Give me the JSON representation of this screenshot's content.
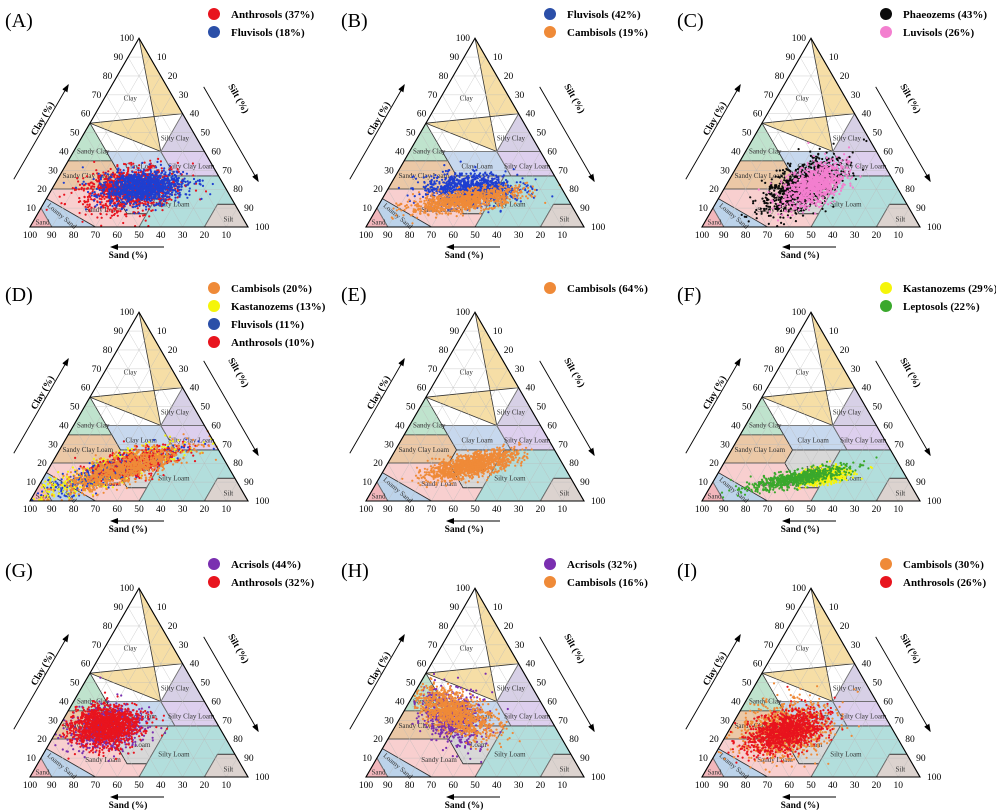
{
  "figure": {
    "chart_data": {
      "type": "scatter",
      "subtype": "soil-texture-ternary",
      "axes": {
        "sand_title": "Sand (%)",
        "clay_title": "Clay (%)",
        "silt_title": "Silt (%)",
        "sand_ticks": [
          "100",
          "90",
          "80",
          "70",
          "60",
          "50",
          "40",
          "30",
          "20",
          "10"
        ],
        "clay_ticks": [
          "10",
          "20",
          "30",
          "40",
          "50",
          "60",
          "70",
          "80",
          "90",
          "100"
        ],
        "silt_ticks": [
          "10",
          "20",
          "30",
          "40",
          "50",
          "60",
          "70",
          "80",
          "90",
          "100"
        ],
        "range": [
          0,
          100
        ]
      },
      "regions": [
        {
          "name": "Clay",
          "color": "#f6dea6",
          "vertices": [
            [
              45,
              55
            ],
            [
              0,
              60
            ],
            [
              0,
              100
            ],
            [
              20,
              40
            ]
          ]
        },
        {
          "name": "Silty Clay",
          "color": "#d7d0e6",
          "vertices": [
            [
              0,
              60
            ],
            [
              0,
              40
            ],
            [
              20,
              40
            ]
          ]
        },
        {
          "name": "Sandy Clay",
          "color": "#bfe3cd",
          "vertices": [
            [
              45,
              55
            ],
            [
              65,
              35
            ],
            [
              45,
              35
            ]
          ]
        },
        {
          "name": "Clay Loam",
          "color": "#c7d8ee",
          "vertices": [
            [
              45,
              27
            ],
            [
              20,
              27
            ],
            [
              20,
              40
            ],
            [
              45,
              40
            ]
          ]
        },
        {
          "name": "Silty Clay Loam",
          "color": "#ddcfee",
          "vertices": [
            [
              20,
              27
            ],
            [
              0,
              27
            ],
            [
              0,
              40
            ],
            [
              20,
              40
            ]
          ]
        },
        {
          "name": "Sandy Clay Loam",
          "color": "#ebc8a6",
          "vertices": [
            [
              45,
              35
            ],
            [
              65,
              35
            ],
            [
              80,
              20
            ],
            [
              52,
              20
            ],
            [
              45,
              27
            ]
          ]
        },
        {
          "name": "Loam",
          "color": "#d8d8d8",
          "vertices": [
            [
              45,
              27
            ],
            [
              52,
              20
            ],
            [
              52,
              7
            ],
            [
              43,
              7
            ],
            [
              23,
              27
            ]
          ]
        },
        {
          "name": "Silty Loam",
          "color": "#b2dedc",
          "vertices": [
            [
              50,
              0
            ],
            [
              20,
              0
            ],
            [
              8,
              12
            ],
            [
              0,
              12
            ],
            [
              0,
              27
            ],
            [
              23,
              27
            ],
            [
              50,
              0
            ]
          ]
        },
        {
          "name": "Silt",
          "color": "#dcd3cf",
          "vertices": [
            [
              20,
              0
            ],
            [
              0,
              0
            ],
            [
              0,
              12
            ],
            [
              8,
              12
            ]
          ]
        },
        {
          "name": "Sandy Loam",
          "color": "#f8cfcf",
          "vertices": [
            [
              52,
              20
            ],
            [
              80,
              20
            ],
            [
              85,
              15
            ],
            [
              70,
              0
            ],
            [
              50,
              0
            ],
            [
              43,
              7
            ],
            [
              52,
              7
            ]
          ]
        },
        {
          "name": "Loamy Sand",
          "color": "#bcd3ea",
          "vertices": [
            [
              85,
              15
            ],
            [
              70,
              0
            ],
            [
              90,
              0
            ],
            [
              90,
              10
            ]
          ]
        },
        {
          "name": "Sand",
          "color": "#f2b7bc",
          "vertices": [
            [
              100,
              0
            ],
            [
              90,
              0
            ],
            [
              90,
              10
            ]
          ]
        }
      ],
      "series_colors": {
        "Anthrosols": "#e8141e",
        "Fluvisols": "#1f3fd0",
        "Cambisols": "#ef8a38",
        "Phaeozems": "#0a0a0a",
        "Luvisols": "#f37fcf",
        "Kastanozems": "#f5f50a",
        "Leptosols": "#3aa82c",
        "Acrisols": "#7a2fb0"
      },
      "panels": [
        {
          "letter": "(A)",
          "legend": [
            {
              "text": "Anthrosols (37%)",
              "color": "#e8141e"
            },
            {
              "text": "Fluvisols (18%)",
              "color": "#2b4fa8"
            }
          ],
          "series": [
            {
              "name": "Anthrosols",
              "color": "#e8141e",
              "clusters": [
                {
                  "center": [
                    44,
                    20
                  ],
                  "spread": [
                    12,
                    5
                  ],
                  "angle": 15,
                  "count": 1100
                }
              ]
            },
            {
              "name": "Fluvisols",
              "color": "#1f3fd0",
              "clusters": [
                {
                  "center": [
                    38,
                    21
                  ],
                  "spread": [
                    10,
                    4
                  ],
                  "angle": 10,
                  "count": 1100
                }
              ]
            }
          ]
        },
        {
          "letter": "(B)",
          "legend": [
            {
              "text": "Fluvisols (42%)",
              "color": "#2b4fa8"
            },
            {
              "text": "Cambisols (19%)",
              "color": "#ef8a38"
            }
          ],
          "series": [
            {
              "name": "Fluvisols",
              "color": "#1f3fd0",
              "clusters": [
                {
                  "center": [
                    42,
                    20
                  ],
                  "spread": [
                    11,
                    4
                  ],
                  "angle": 5,
                  "count": 1000
                }
              ]
            },
            {
              "name": "Cambisols",
              "color": "#ef8a38",
              "clusters": [
                {
                  "center": [
                    48,
                    14
                  ],
                  "spread": [
                    14,
                    2.5
                  ],
                  "angle": 10,
                  "count": 1000
                }
              ]
            }
          ]
        },
        {
          "letter": "(C)",
          "legend": [
            {
              "text": "Phaeozems (43%)",
              "color": "#0a0a0a"
            },
            {
              "text": "Luvisols (26%)",
              "color": "#f37fcf"
            }
          ],
          "series": [
            {
              "name": "Phaeozems",
              "color": "#0a0a0a",
              "clusters": [
                {
                  "center": [
                    42,
                    22
                  ],
                  "spread": [
                    13,
                    4
                  ],
                  "angle": 30,
                  "count": 1000
                }
              ]
            },
            {
              "name": "Luvisols",
              "color": "#f37fcf",
              "clusters": [
                {
                  "center": [
                    38,
                    22
                  ],
                  "spread": [
                    10,
                    3.5
                  ],
                  "angle": 30,
                  "count": 1000
                }
              ]
            }
          ]
        },
        {
          "letter": "(D)",
          "legend": [
            {
              "text": "Cambisols (20%)",
              "color": "#ef8a38"
            },
            {
              "text": "Kastanozems (13%)",
              "color": "#f5f50a"
            },
            {
              "text": "Fluvisols (11%)",
              "color": "#2b4fa8"
            },
            {
              "text": "Anthrosols (10%)",
              "color": "#e8141e"
            }
          ],
          "series": [
            {
              "name": "Kastanozems",
              "color": "#f5f50a",
              "clusters": [
                {
                  "center": [
                    55,
                    16
                  ],
                  "spread": [
                    20,
                    3
                  ],
                  "angle": 18,
                  "count": 600
                }
              ]
            },
            {
              "name": "Fluvisols",
              "color": "#1f3fd0",
              "clusters": [
                {
                  "center": [
                    52,
                    17
                  ],
                  "spread": [
                    18,
                    2.5
                  ],
                  "angle": 18,
                  "count": 500
                }
              ]
            },
            {
              "name": "Anthrosols",
              "color": "#e8141e",
              "clusters": [
                {
                  "center": [
                    42,
                    20
                  ],
                  "spread": [
                    12,
                    3
                  ],
                  "angle": 18,
                  "count": 500
                }
              ]
            },
            {
              "name": "Cambisols",
              "color": "#ef8a38",
              "clusters": [
                {
                  "center": [
                    48,
                    17
                  ],
                  "spread": [
                    17,
                    3
                  ],
                  "angle": 18,
                  "count": 900
                }
              ]
            }
          ]
        },
        {
          "letter": "(E)",
          "legend": [
            {
              "text": "Cambisols (64%)",
              "color": "#ef8a38"
            }
          ],
          "series": [
            {
              "name": "Cambisols",
              "color": "#ef8a38",
              "clusters": [
                {
                  "center": [
                    42,
                    19
                  ],
                  "spread": [
                    12,
                    2.5
                  ],
                  "angle": 15,
                  "count": 1200
                }
              ]
            }
          ]
        },
        {
          "letter": "(F)",
          "legend": [
            {
              "text": "Kastanozems (29%)",
              "color": "#f5f50a"
            },
            {
              "text": "Leptosols (22%)",
              "color": "#3aa82c"
            }
          ],
          "series": [
            {
              "name": "Kastanozems",
              "color": "#f5f50a",
              "clusters": [
                {
                  "center": [
                    38,
                    13
                  ],
                  "spread": [
                    7,
                    2
                  ],
                  "angle": 10,
                  "count": 500
                }
              ]
            },
            {
              "name": "Leptosols",
              "color": "#3aa82c",
              "clusters": [
                {
                  "center": [
                    50,
                    12
                  ],
                  "spread": [
                    13,
                    1.8
                  ],
                  "angle": 12,
                  "count": 700
                }
              ]
            }
          ]
        },
        {
          "letter": "(G)",
          "legend": [
            {
              "text": "Acrisols (44%)",
              "color": "#7a2fb0"
            },
            {
              "text": "Anthrosols (32%)",
              "color": "#e8141e"
            }
          ],
          "series": [
            {
              "name": "Acrisols",
              "color": "#7a2fb0",
              "clusters": [
                {
                  "center": [
                    52,
                    26
                  ],
                  "spread": [
                    10,
                    5
                  ],
                  "angle": 20,
                  "count": 700
                }
              ]
            },
            {
              "name": "Anthrosols",
              "color": "#e8141e",
              "clusters": [
                {
                  "center": [
                    52,
                    27
                  ],
                  "spread": [
                    9,
                    5
                  ],
                  "angle": 20,
                  "count": 1300
                }
              ]
            }
          ]
        },
        {
          "letter": "(H)",
          "legend": [
            {
              "text": "Acrisols (32%)",
              "color": "#7a2fb0"
            },
            {
              "text": "Cambisols (16%)",
              "color": "#ef8a38"
            }
          ],
          "series": [
            {
              "name": "Acrisols",
              "color": "#7a2fb0",
              "clusters": [
                {
                  "center": [
                    44,
                    32
                  ],
                  "spread": [
                    8,
                    6
                  ],
                  "angle": 50,
                  "count": 700
                }
              ]
            },
            {
              "name": "Cambisols",
              "color": "#ef8a38",
              "clusters": [
                {
                  "center": [
                    42,
                    34
                  ],
                  "spread": [
                    6,
                    8
                  ],
                  "angle": 60,
                  "count": 1000
                }
              ]
            }
          ]
        },
        {
          "letter": "(I)",
          "legend": [
            {
              "text": "Cambisols (30%)",
              "color": "#ef8a38"
            },
            {
              "text": "Anthrosols (26%)",
              "color": "#e8141e"
            }
          ],
          "series": [
            {
              "name": "Cambisols",
              "color": "#ef8a38",
              "clusters": [
                {
                  "center": [
                    48,
                    25
                  ],
                  "spread": [
                    13,
                    6
                  ],
                  "angle": 25,
                  "count": 900
                }
              ]
            },
            {
              "name": "Anthrosols",
              "color": "#e8141e",
              "clusters": [
                {
                  "center": [
                    50,
                    24
                  ],
                  "spread": [
                    11,
                    4
                  ],
                  "angle": 22,
                  "count": 1100
                }
              ]
            }
          ]
        }
      ]
    }
  }
}
